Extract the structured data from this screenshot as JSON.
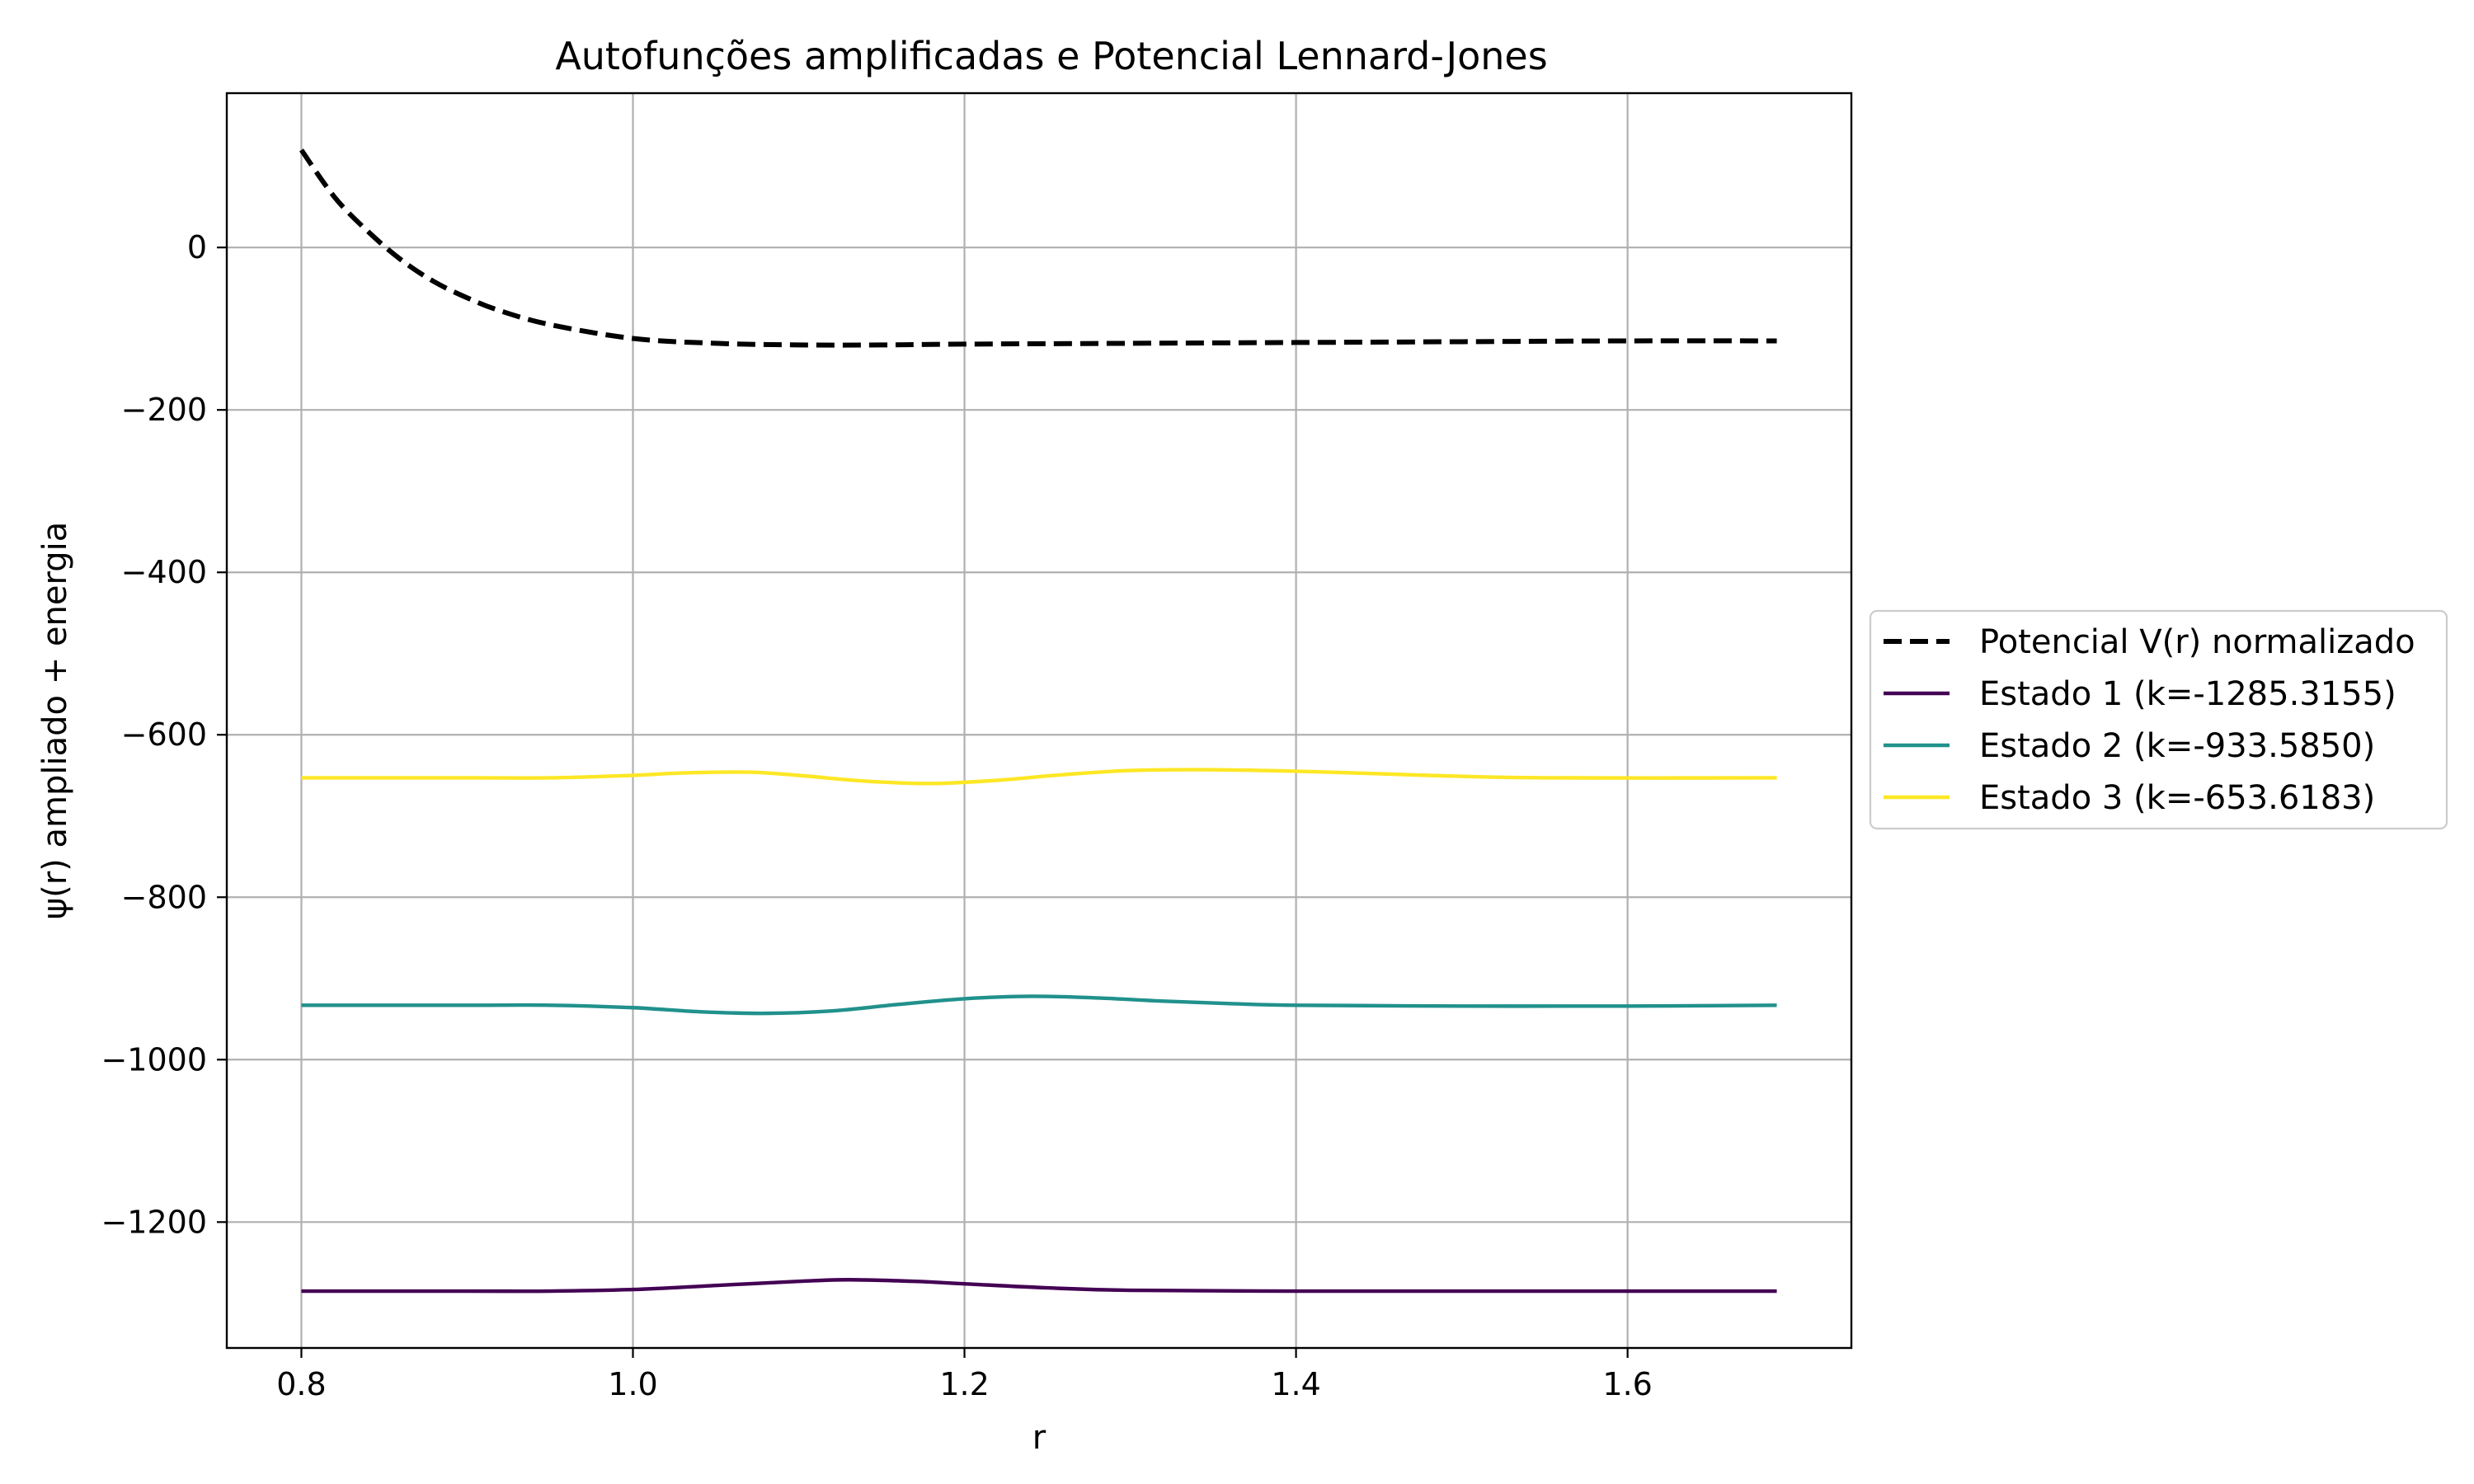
{
  "chart_data": {
    "type": "line",
    "title": "Autofunções amplificadas e Potencial Lennard-Jones",
    "xlabel": "r",
    "ylabel": "ψ(r) ampliado + energia",
    "xlim": [
      0.755,
      1.735
    ],
    "ylim": [
      -1355,
      190
    ],
    "grid": true,
    "legend_position": "center-right-outside",
    "x_ticks": [
      0.8,
      1.0,
      1.2,
      1.4,
      1.6
    ],
    "x_tick_labels": [
      "0.8",
      "1.0",
      "1.2",
      "1.4",
      "1.6"
    ],
    "y_ticks": [
      0,
      -200,
      -400,
      -600,
      -800,
      -1000,
      -1200
    ],
    "y_tick_labels": [
      "0",
      "−200",
      "−400",
      "−600",
      "−800",
      "−1000",
      "−1200"
    ],
    "series": [
      {
        "name": "Potencial V(r) normalizado",
        "color": "#000000",
        "style": "dashed",
        "x": [
          0.8,
          0.82,
          0.84,
          0.86,
          0.88,
          0.9,
          0.92,
          0.95,
          1.0,
          1.05,
          1.1,
          1.15,
          1.2,
          1.3,
          1.4,
          1.5,
          1.6,
          1.69
        ],
        "y": [
          120,
          62,
          20,
          -15,
          -42,
          -62,
          -78,
          -95,
          -112,
          -118,
          -120,
          -120,
          -119,
          -118,
          -117,
          -116,
          -115,
          -115
        ]
      },
      {
        "name": "Estado 1 (k=-1285.3155)",
        "color": "#440154",
        "style": "solid",
        "x": [
          0.8,
          0.9,
          0.95,
          1.0,
          1.05,
          1.1,
          1.13,
          1.17,
          1.2,
          1.25,
          1.3,
          1.4,
          1.5,
          1.6,
          1.69
        ],
        "y": [
          -1285,
          -1285,
          -1285,
          -1283,
          -1278,
          -1273,
          -1271,
          -1273,
          -1276,
          -1281,
          -1284,
          -1285,
          -1285,
          -1285,
          -1285
        ]
      },
      {
        "name": "Estado 2 (k=-933.5850)",
        "color": "#21918c",
        "style": "solid",
        "x": [
          0.8,
          0.9,
          0.95,
          1.0,
          1.04,
          1.08,
          1.12,
          1.16,
          1.2,
          1.24,
          1.28,
          1.32,
          1.36,
          1.4,
          1.5,
          1.6,
          1.69
        ],
        "y": [
          -933,
          -933,
          -933,
          -936,
          -941,
          -943,
          -940,
          -932,
          -925,
          -922,
          -924,
          -928,
          -931,
          -933,
          -934,
          -934,
          -933
        ]
      },
      {
        "name": "Estado 3 (k=-653.6183)",
        "color": "#fde725",
        "style": "solid",
        "x": [
          0.8,
          0.9,
          0.95,
          1.0,
          1.03,
          1.07,
          1.1,
          1.14,
          1.18,
          1.22,
          1.26,
          1.3,
          1.34,
          1.38,
          1.42,
          1.48,
          1.55,
          1.69
        ],
        "y": [
          -653,
          -653,
          -653,
          -650,
          -647,
          -646,
          -650,
          -657,
          -660,
          -656,
          -649,
          -644,
          -643,
          -644,
          -646,
          -650,
          -653,
          -653
        ]
      }
    ]
  }
}
